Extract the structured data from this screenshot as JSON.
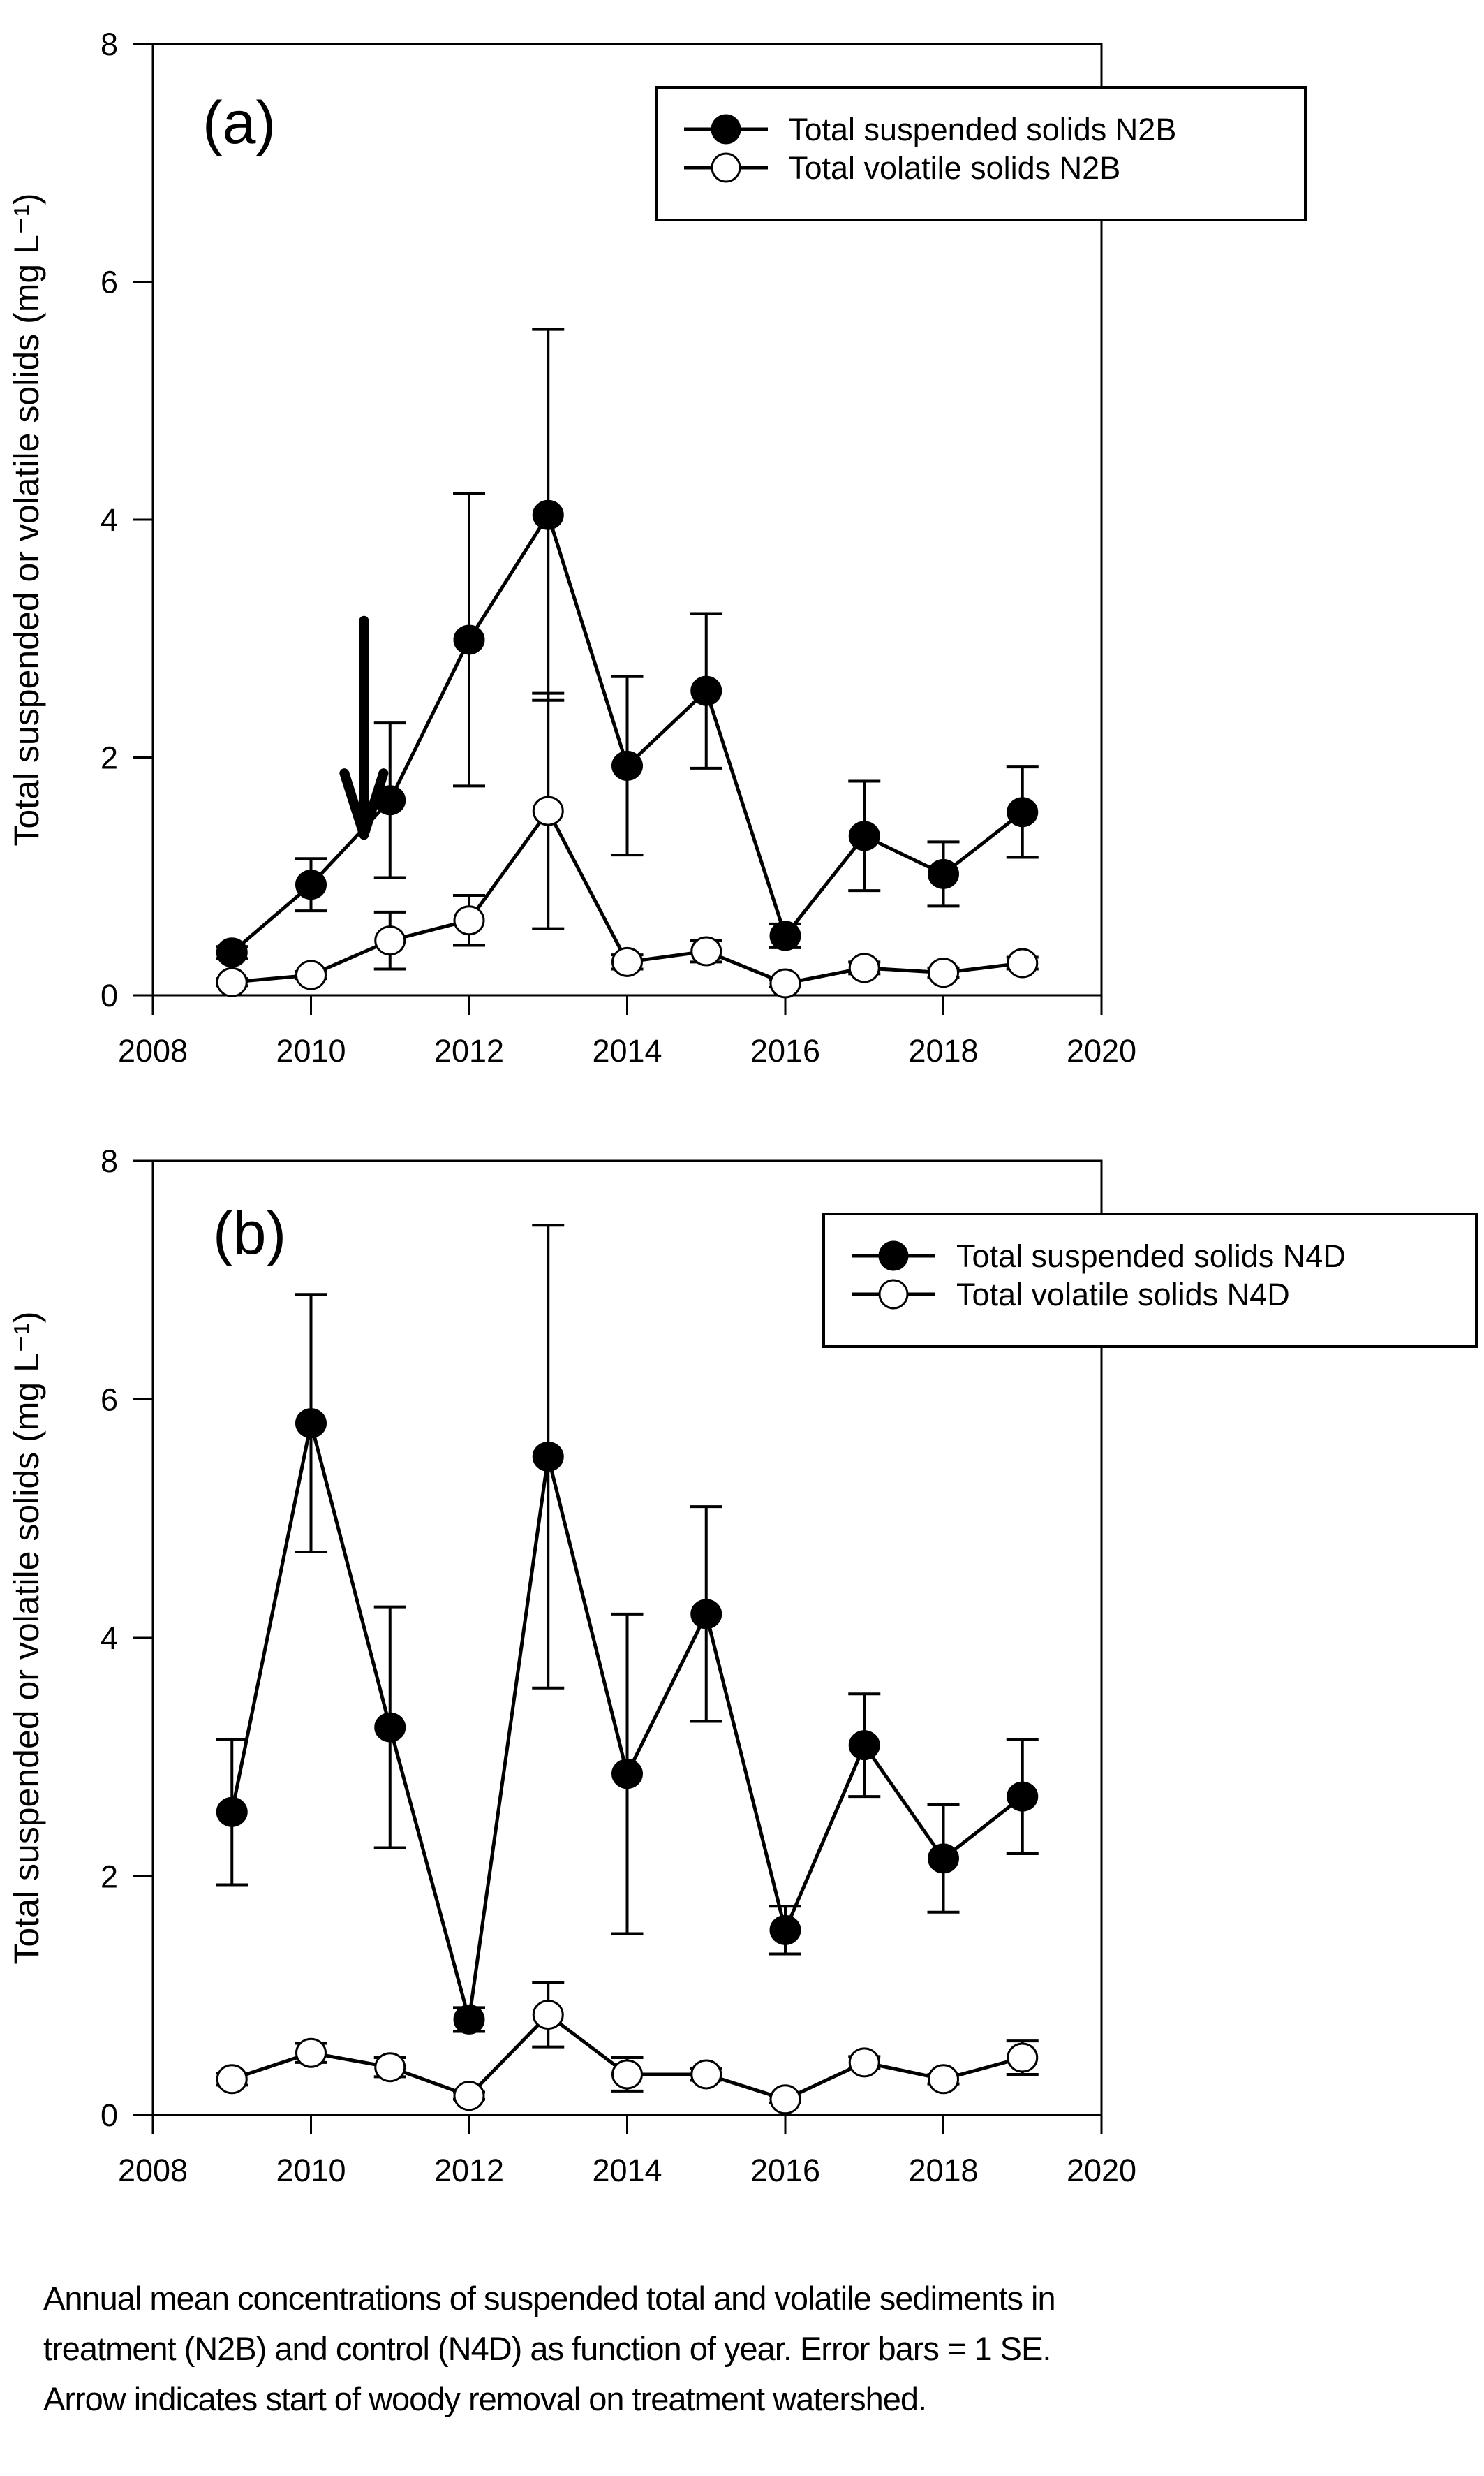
{
  "chart_data": [
    {
      "type": "line",
      "panel_label": "(a)",
      "title": "",
      "xlabel": "",
      "ylabel": "Total suspended or volatile solids (mg L⁻¹)",
      "xlim": [
        2008,
        2020
      ],
      "ylim": [
        0,
        8
      ],
      "xticks": [
        2008,
        2010,
        2012,
        2014,
        2016,
        2018,
        2020
      ],
      "yticks": [
        0,
        2,
        4,
        6,
        8
      ],
      "grid": false,
      "legend_position": "top-right",
      "x": [
        2009,
        2010,
        2011,
        2012,
        2013,
        2014,
        2015,
        2016,
        2017,
        2018,
        2019
      ],
      "series": [
        {
          "name": "Total suspended solids N2B",
          "marker": "filled-circle",
          "values": [
            0.36,
            0.93,
            1.64,
            2.99,
            4.04,
            1.93,
            2.56,
            0.5,
            1.34,
            1.02,
            1.54
          ],
          "se": [
            0.05,
            0.22,
            0.65,
            1.23,
            1.56,
            0.75,
            0.65,
            0.1,
            0.46,
            0.27,
            0.38
          ]
        },
        {
          "name": "Total volatile solids N2B",
          "marker": "open-circle",
          "values": [
            0.11,
            0.17,
            0.46,
            0.63,
            1.55,
            0.28,
            0.37,
            0.1,
            0.23,
            0.19,
            0.27
          ],
          "se": [
            0.03,
            0.03,
            0.24,
            0.21,
            0.99,
            0.06,
            0.09,
            0.03,
            0.05,
            0.04,
            0.05
          ]
        }
      ],
      "annotations": [
        {
          "type": "arrow",
          "label": "start of woody removal",
          "x": 2010.67,
          "y_from": 3.15,
          "y_to": 1.35
        }
      ]
    },
    {
      "type": "line",
      "panel_label": "(b)",
      "title": "",
      "xlabel": "",
      "ylabel": "Total suspended or volatile solids (mg L⁻¹)",
      "xlim": [
        2008,
        2020
      ],
      "ylim": [
        0,
        8
      ],
      "xticks": [
        2008,
        2010,
        2012,
        2014,
        2016,
        2018,
        2020
      ],
      "yticks": [
        0,
        2,
        4,
        6,
        8
      ],
      "grid": false,
      "legend_position": "top-right",
      "x": [
        2009,
        2010,
        2011,
        2012,
        2013,
        2014,
        2015,
        2016,
        2017,
        2018,
        2019
      ],
      "series": [
        {
          "name": "Total suspended solids N4D",
          "marker": "filled-circle",
          "values": [
            2.54,
            5.8,
            3.25,
            0.8,
            5.52,
            2.86,
            4.2,
            1.55,
            3.1,
            2.15,
            2.67
          ],
          "se": [
            0.61,
            1.08,
            1.01,
            0.1,
            1.94,
            1.34,
            0.9,
            0.2,
            0.43,
            0.45,
            0.48
          ]
        },
        {
          "name": "Total volatile solids N4D",
          "marker": "open-circle",
          "values": [
            0.3,
            0.52,
            0.4,
            0.16,
            0.84,
            0.34,
            0.34,
            0.13,
            0.44,
            0.3,
            0.48
          ],
          "se": [
            0.05,
            0.08,
            0.08,
            0.03,
            0.27,
            0.14,
            0.05,
            0.03,
            0.05,
            0.04,
            0.14
          ]
        }
      ]
    }
  ],
  "caption": [
    "Annual mean concentrations of suspended total and volatile sediments in",
    "treatment (N2B) and control (N4D) as function of year. Error bars = 1 SE.",
    "Arrow indicates start of woody removal on treatment watershed."
  ]
}
